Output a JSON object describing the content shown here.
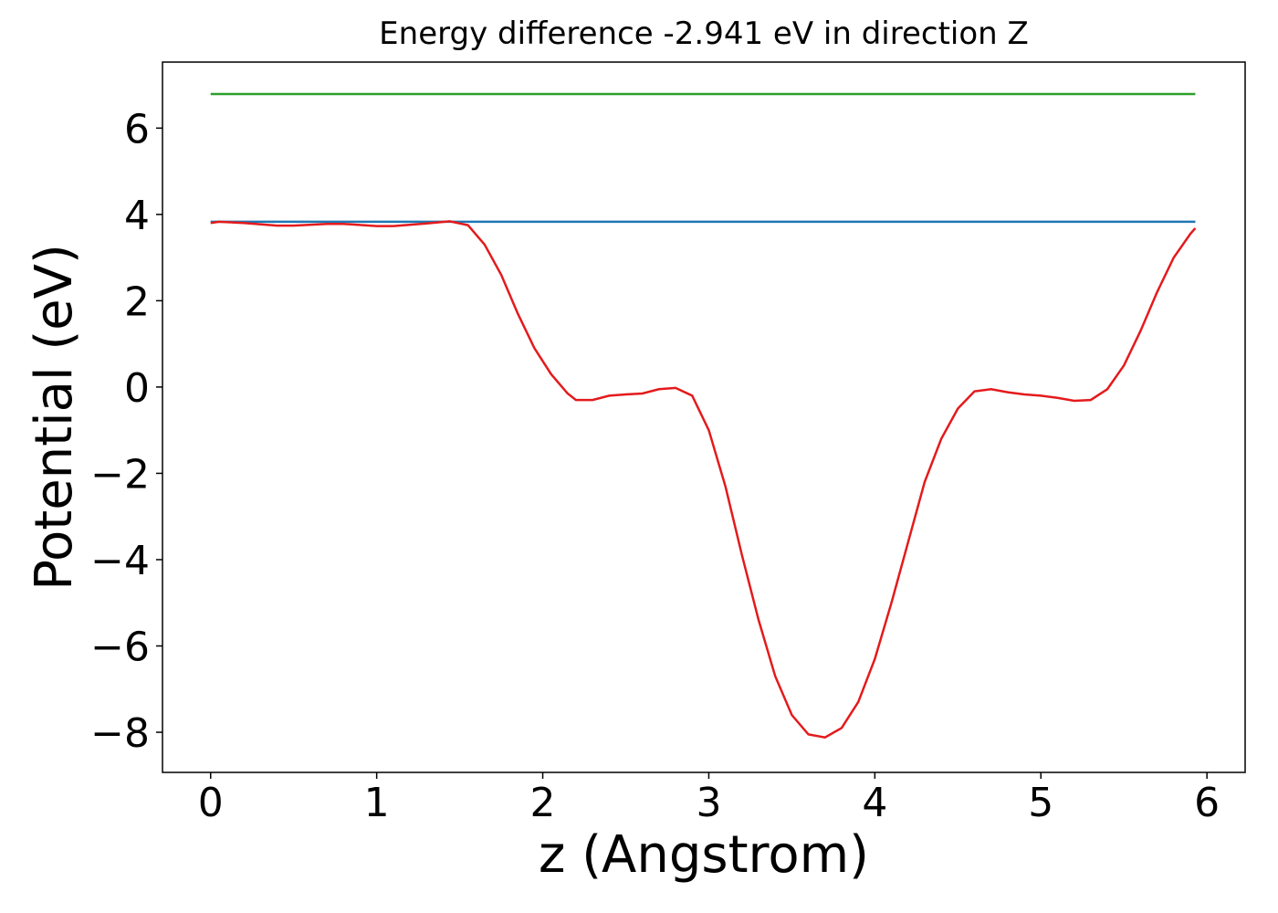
{
  "chart_data": {
    "type": "line",
    "title": "Energy difference -2.941 eV in direction Z",
    "xlabel": "z (Angstrom)",
    "ylabel": "Potential (eV)",
    "xlim": [
      -0.29,
      6.23
    ],
    "ylim": [
      -8.93,
      7.53
    ],
    "xticks": [
      0,
      1,
      2,
      3,
      4,
      5,
      6
    ],
    "yticks": [
      {
        "value": -8,
        "label": "−8"
      },
      {
        "value": -6,
        "label": "−6"
      },
      {
        "value": -4,
        "label": "−4"
      },
      {
        "value": -2,
        "label": "−2"
      },
      0,
      2,
      4,
      6
    ],
    "grid": false,
    "series": [
      {
        "color": "#2ca02c",
        "x": [
          0,
          5.93
        ],
        "values": [
          6.79,
          6.79
        ]
      },
      {
        "color": "#1f77b4",
        "x": [
          0,
          5.93
        ],
        "values": [
          3.83,
          3.83
        ]
      },
      {
        "color": "#e41a1c",
        "x": [
          0,
          0.05,
          0.2,
          0.4,
          0.5,
          0.7,
          0.8,
          1.0,
          1.1,
          1.3,
          1.44,
          1.55,
          1.65,
          1.75,
          1.85,
          1.95,
          2.05,
          2.15,
          2.2,
          2.3,
          2.4,
          2.5,
          2.6,
          2.7,
          2.8,
          2.9,
          3.0,
          3.1,
          3.2,
          3.3,
          3.4,
          3.5,
          3.6,
          3.7,
          3.8,
          3.9,
          4.0,
          4.1,
          4.2,
          4.3,
          4.4,
          4.5,
          4.6,
          4.7,
          4.8,
          4.9,
          5.0,
          5.1,
          5.2,
          5.3,
          5.4,
          5.5,
          5.6,
          5.7,
          5.8,
          5.9,
          5.93
        ],
        "values": [
          3.8,
          3.83,
          3.8,
          3.74,
          3.74,
          3.78,
          3.78,
          3.73,
          3.73,
          3.79,
          3.84,
          3.75,
          3.3,
          2.6,
          1.7,
          0.9,
          0.3,
          -0.15,
          -0.3,
          -0.3,
          -0.2,
          -0.17,
          -0.15,
          -0.05,
          -0.02,
          -0.2,
          -1.0,
          -2.3,
          -3.9,
          -5.4,
          -6.7,
          -7.6,
          -8.05,
          -8.12,
          -7.9,
          -7.3,
          -6.3,
          -5.0,
          -3.6,
          -2.2,
          -1.2,
          -0.5,
          -0.1,
          -0.05,
          -0.12,
          -0.17,
          -0.2,
          -0.25,
          -0.32,
          -0.3,
          -0.05,
          0.5,
          1.3,
          2.2,
          3.0,
          3.55,
          3.68
        ]
      }
    ]
  }
}
